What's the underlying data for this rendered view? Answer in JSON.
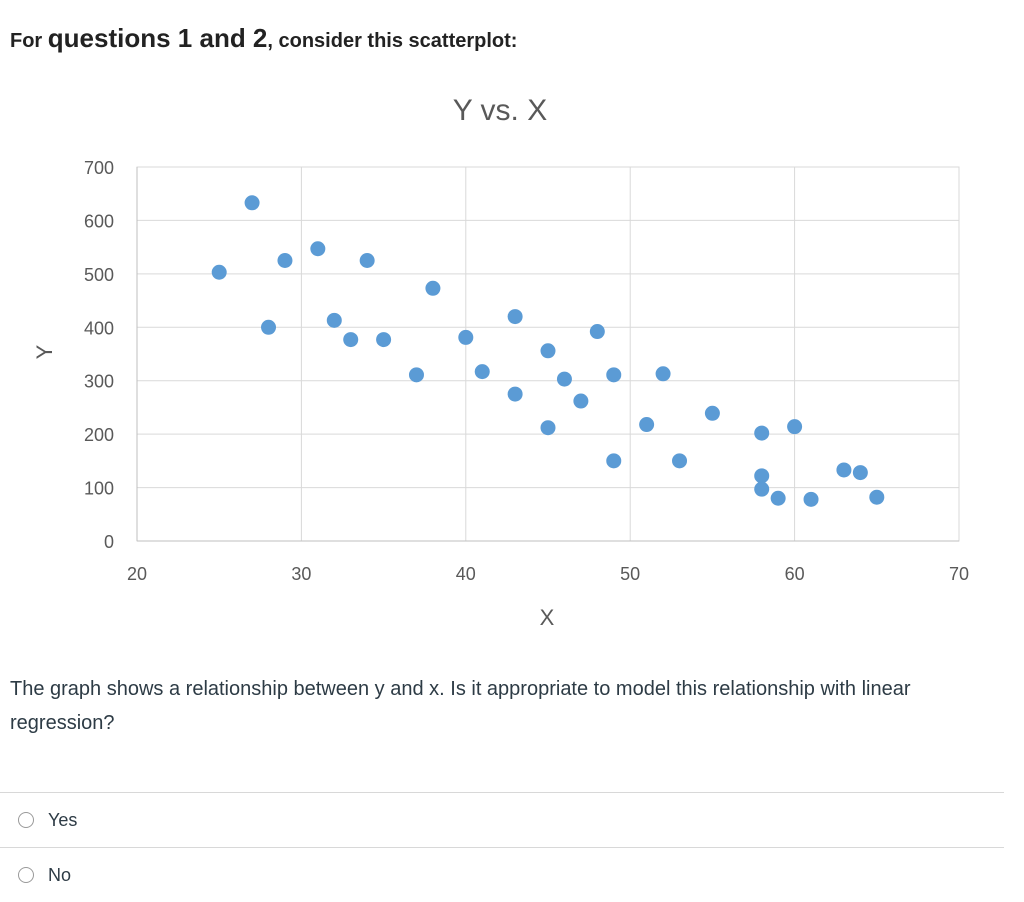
{
  "heading": {
    "part1": "For ",
    "part2": "questions 1 and 2",
    "part3": ", consider this scatterplot:"
  },
  "chart_data": {
    "type": "scatter",
    "title": "Y vs. X",
    "xlabel": "X",
    "ylabel": "Y",
    "xlim": [
      20,
      70
    ],
    "ylim": [
      0,
      700
    ],
    "xticks": [
      20,
      30,
      40,
      50,
      60,
      70
    ],
    "yticks": [
      0,
      100,
      200,
      300,
      400,
      500,
      600,
      700
    ],
    "grid": true,
    "legend": "none",
    "color": "#5b9bd5",
    "points": [
      {
        "x": 25,
        "y": 503
      },
      {
        "x": 27,
        "y": 633
      },
      {
        "x": 28,
        "y": 400
      },
      {
        "x": 29,
        "y": 525
      },
      {
        "x": 31,
        "y": 547
      },
      {
        "x": 32,
        "y": 413
      },
      {
        "x": 33,
        "y": 377
      },
      {
        "x": 34,
        "y": 525
      },
      {
        "x": 35,
        "y": 377
      },
      {
        "x": 37,
        "y": 311
      },
      {
        "x": 38,
        "y": 473
      },
      {
        "x": 40,
        "y": 381
      },
      {
        "x": 41,
        "y": 317
      },
      {
        "x": 43,
        "y": 420
      },
      {
        "x": 43,
        "y": 275
      },
      {
        "x": 45,
        "y": 356
      },
      {
        "x": 45,
        "y": 212
      },
      {
        "x": 46,
        "y": 303
      },
      {
        "x": 47,
        "y": 262
      },
      {
        "x": 48,
        "y": 392
      },
      {
        "x": 49,
        "y": 311
      },
      {
        "x": 49,
        "y": 150
      },
      {
        "x": 51,
        "y": 218
      },
      {
        "x": 52,
        "y": 313
      },
      {
        "x": 53,
        "y": 150
      },
      {
        "x": 55,
        "y": 239
      },
      {
        "x": 58,
        "y": 202
      },
      {
        "x": 58,
        "y": 122
      },
      {
        "x": 58,
        "y": 97
      },
      {
        "x": 59,
        "y": 80
      },
      {
        "x": 60,
        "y": 214
      },
      {
        "x": 61,
        "y": 78
      },
      {
        "x": 63,
        "y": 133
      },
      {
        "x": 64,
        "y": 128
      },
      {
        "x": 65,
        "y": 82
      }
    ]
  },
  "question": {
    "text": "The graph shows a relationship between y and x. Is it appropriate to model this relationship with linear regression?"
  },
  "options": [
    {
      "label": "Yes"
    },
    {
      "label": "No"
    }
  ]
}
